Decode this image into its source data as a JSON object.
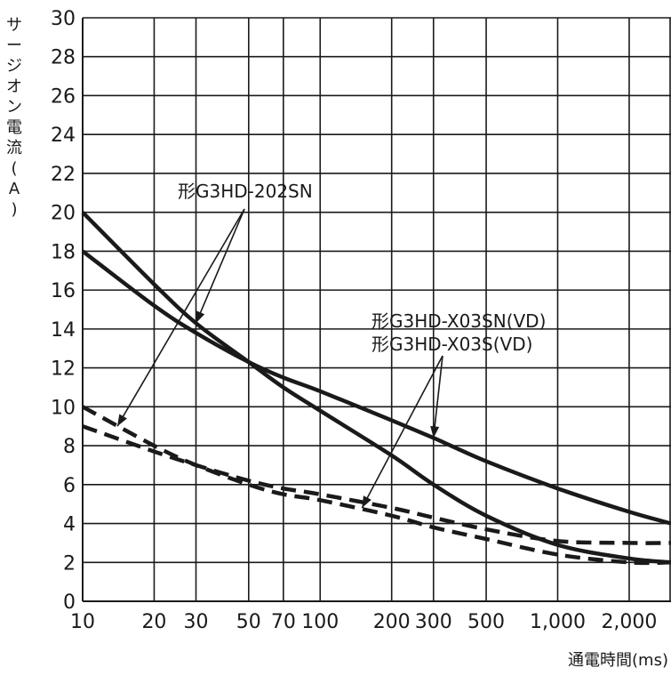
{
  "chart_data": {
    "type": "line",
    "title": "",
    "xlabel": "通電時間(ms)",
    "ylabel": "サージオン電流(A)",
    "x_scale": "log",
    "xlim": [
      10,
      3000
    ],
    "ylim": [
      0,
      30
    ],
    "grid": true,
    "x_tick_labels": [
      "10",
      "20",
      "30",
      "50",
      "70",
      "100",
      "200",
      "300",
      "500",
      "1,000",
      "2,000"
    ],
    "x_ticks": [
      10,
      20,
      30,
      50,
      70,
      100,
      200,
      300,
      500,
      1000,
      2000
    ],
    "y_ticks": [
      0,
      2,
      4,
      6,
      8,
      10,
      12,
      14,
      16,
      18,
      20,
      22,
      24,
      26,
      28,
      30
    ],
    "series": [
      {
        "group": "形G3HD-202SN",
        "style": "solid",
        "color": "#1a1a1a",
        "x": [
          10,
          20,
          30,
          50,
          70,
          100,
          200,
          300,
          500,
          1000,
          2000,
          3000
        ],
        "y": [
          20,
          16.3,
          14.3,
          12.3,
          11.0,
          9.8,
          7.5,
          6.0,
          4.4,
          2.9,
          2.2,
          2.0
        ]
      },
      {
        "group": "形G3HD-202SN",
        "style": "dashed",
        "color": "#1a1a1a",
        "x": [
          10,
          20,
          30,
          50,
          70,
          100,
          200,
          300,
          500,
          1000,
          2000,
          3000
        ],
        "y": [
          10,
          8.0,
          7.0,
          6.0,
          5.5,
          5.2,
          4.4,
          3.8,
          3.2,
          2.4,
          2.0,
          2.0
        ]
      },
      {
        "group": "形G3HD-X03SN(VD) / 形G3HD-X03S(VD)",
        "style": "solid",
        "color": "#1a1a1a",
        "x": [
          10,
          20,
          30,
          50,
          70,
          100,
          200,
          300,
          500,
          1000,
          2000,
          3000
        ],
        "y": [
          18,
          15.2,
          13.8,
          12.3,
          11.5,
          10.8,
          9.3,
          8.4,
          7.2,
          5.8,
          4.6,
          4.0
        ]
      },
      {
        "group": "形G3HD-X03SN(VD) / 形G3HD-X03S(VD)",
        "style": "dashed",
        "color": "#1a1a1a",
        "x": [
          10,
          20,
          30,
          50,
          70,
          100,
          200,
          300,
          500,
          1000,
          2000,
          3000
        ],
        "y": [
          9.0,
          7.7,
          7.0,
          6.2,
          5.8,
          5.5,
          4.8,
          4.3,
          3.7,
          3.1,
          3.0,
          3.0
        ]
      }
    ],
    "annotations": [
      {
        "text": "形G3HD-202SN",
        "arrows_to": [
          {
            "x": 30,
            "y": 14.3
          },
          {
            "x": 14,
            "y": 9.0
          }
        ]
      },
      {
        "text": "形G3HD-X03SN(VD)\n形G3HD-X03S(VD)",
        "arrows_to": [
          {
            "x": 300,
            "y": 8.4
          },
          {
            "x": 150,
            "y": 4.8
          }
        ]
      }
    ]
  }
}
